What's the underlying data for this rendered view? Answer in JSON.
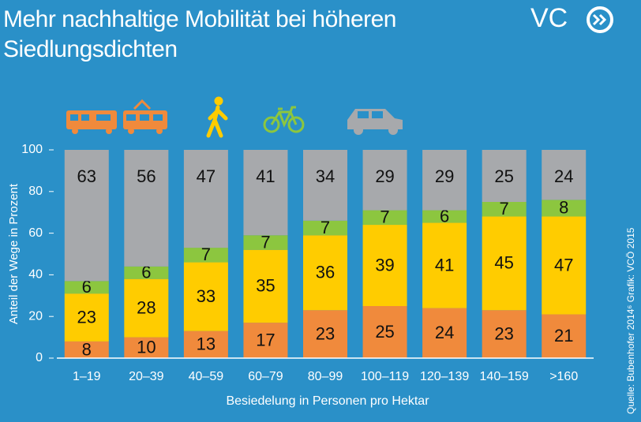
{
  "chart_data": {
    "type": "stacked-bar",
    "title": "Mehr nachhaltige Mobilität bei höheren Siedlungsdichten",
    "logo": "VC",
    "source": "Quelle: Bubenhofer 2014⁶ Grafik: VCÖ 2015",
    "x_label": "Besiedelung in Personen pro Hektar",
    "y_label": "Anteil der Wege in Prozent",
    "categories": [
      "1–19",
      "20–39",
      "40–59",
      "60–79",
      "80–99",
      "100–119",
      "120–139",
      "140–159",
      ">160"
    ],
    "series": [
      {
        "color": "#f08a3c",
        "values": [
          8,
          10,
          13,
          17,
          23,
          25,
          24,
          23,
          21
        ]
      },
      {
        "color": "#ffcc00",
        "values": [
          23,
          28,
          33,
          35,
          36,
          39,
          41,
          45,
          47
        ]
      },
      {
        "color": "#8cc63f",
        "values": [
          6,
          6,
          7,
          7,
          7,
          7,
          6,
          7,
          8
        ]
      },
      {
        "color": "#a7a9ac",
        "values": [
          63,
          56,
          47,
          41,
          34,
          29,
          29,
          25,
          24
        ]
      }
    ],
    "ylim": [
      0,
      100
    ],
    "yticks": [
      0,
      20,
      40,
      60,
      80,
      100
    ]
  }
}
